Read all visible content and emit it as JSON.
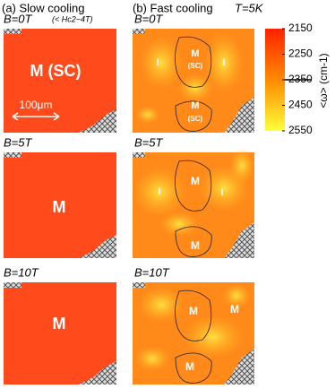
{
  "columns": [
    {
      "label": "(a) Slow cooling"
    },
    {
      "label": "(b) Fast cooling",
      "condition": "T=5K"
    }
  ],
  "note": "(< Hc2~4T)",
  "scale_bar": "100μm",
  "rows": [
    {
      "field": "B=0T",
      "slow": {
        "labels": [
          "M (SC)"
        ]
      },
      "fast": {
        "labels": [
          "I",
          "M",
          "(SC)",
          "I",
          "M",
          "(SC)"
        ]
      }
    },
    {
      "field": "B=5T",
      "slow": {
        "labels": [
          "M"
        ]
      },
      "fast": {
        "labels": [
          "I",
          "M",
          "I",
          "M"
        ]
      }
    },
    {
      "field": "B=10T",
      "slow": {
        "labels": [
          "M"
        ]
      },
      "fast": {
        "labels": [
          "M",
          "M",
          "M"
        ]
      }
    }
  ],
  "colorbar": {
    "label": "<ω> (cm-1)",
    "lim": [
      2150,
      2550
    ],
    "ticks": [
      2150,
      2250,
      2350,
      2450,
      2550
    ],
    "colors": [
      "#ff2200",
      "#ff8a00",
      "#ffff3a"
    ]
  }
}
